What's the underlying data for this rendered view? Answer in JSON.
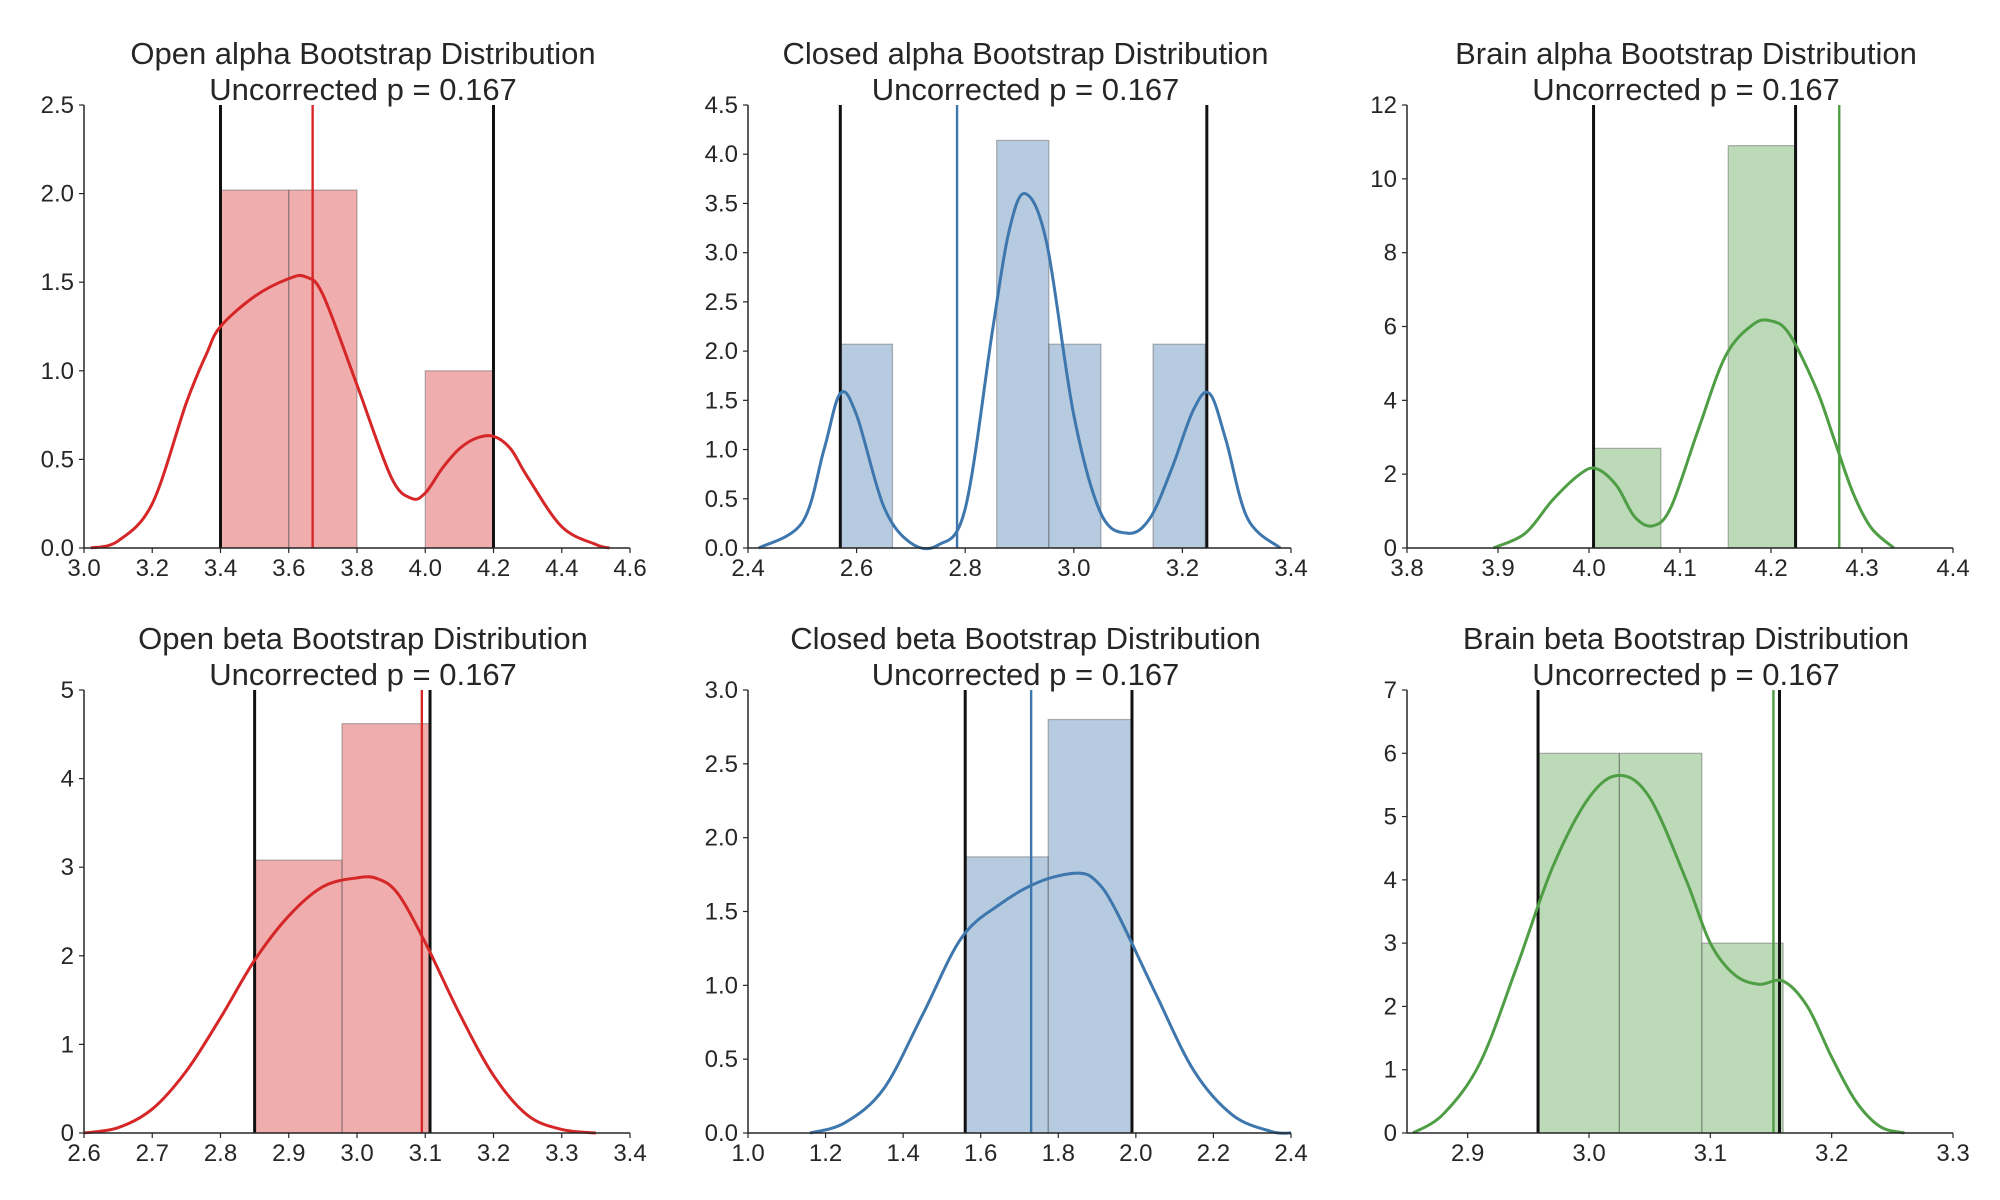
{
  "chart_data": [
    {
      "type": "histogram",
      "title_line1": "Open alpha Bootstrap Distribution",
      "title_line2": "Uncorrected p = 0.167",
      "color": "#d62728",
      "xlim": [
        3.0,
        4.6
      ],
      "ylim": [
        0,
        2.5
      ],
      "xticks": [
        "3.0",
        "3.2",
        "3.4",
        "3.6",
        "3.8",
        "4.0",
        "4.2",
        "4.4",
        "4.6"
      ],
      "yticks": [
        "0.0",
        "0.5",
        "1.0",
        "1.5",
        "2.0",
        "2.5"
      ],
      "bins": [
        {
          "x0": 3.4,
          "x1": 3.6,
          "height": 2.02
        },
        {
          "x0": 3.6,
          "x1": 3.8,
          "height": 2.02
        },
        {
          "x0": 3.8,
          "x1": 4.0,
          "height": 0
        },
        {
          "x0": 4.0,
          "x1": 4.2,
          "height": 1.0
        }
      ],
      "kde": {
        "x": [
          3.02,
          3.1,
          3.2,
          3.3,
          3.36,
          3.4,
          3.5,
          3.6,
          3.65,
          3.7,
          3.8,
          3.9,
          3.96,
          4.0,
          4.05,
          4.1,
          4.15,
          4.2,
          4.25,
          4.3,
          4.4,
          4.5,
          4.54
        ],
        "y": [
          0.0,
          0.04,
          0.25,
          0.82,
          1.1,
          1.25,
          1.42,
          1.52,
          1.53,
          1.43,
          0.92,
          0.4,
          0.28,
          0.31,
          0.45,
          0.56,
          0.62,
          0.63,
          0.56,
          0.4,
          0.12,
          0.02,
          0.0
        ]
      },
      "ci_lines": [
        3.4,
        4.2
      ],
      "observed_line": 3.67
    },
    {
      "type": "histogram",
      "title_line1": "Closed alpha Bootstrap Distribution",
      "title_line2": "Uncorrected p = 0.167",
      "color": "#3e77ad",
      "xlim": [
        2.4,
        3.4
      ],
      "ylim": [
        0,
        4.5
      ],
      "xticks": [
        "2.4",
        "2.6",
        "2.8",
        "3.0",
        "3.2",
        "3.4"
      ],
      "yticks": [
        "0.0",
        "0.5",
        "1.0",
        "1.5",
        "2.0",
        "2.5",
        "3.0",
        "3.5",
        "4.0",
        "4.5"
      ],
      "bins": [
        {
          "x0": 2.57,
          "x1": 2.666,
          "height": 2.07
        },
        {
          "x0": 2.666,
          "x1": 2.762,
          "height": 0
        },
        {
          "x0": 2.762,
          "x1": 2.858,
          "height": 0
        },
        {
          "x0": 2.858,
          "x1": 2.954,
          "height": 4.14
        },
        {
          "x0": 2.954,
          "x1": 3.05,
          "height": 2.07
        },
        {
          "x0": 3.05,
          "x1": 3.146,
          "height": 0
        },
        {
          "x0": 3.146,
          "x1": 3.242,
          "height": 2.07
        }
      ],
      "kde": {
        "x": [
          2.42,
          2.5,
          2.54,
          2.57,
          2.6,
          2.65,
          2.7,
          2.75,
          2.8,
          2.85,
          2.88,
          2.91,
          2.95,
          3.0,
          3.05,
          3.1,
          3.14,
          3.18,
          3.22,
          3.25,
          3.28,
          3.32,
          3.38
        ],
        "y": [
          0.0,
          0.26,
          1.0,
          1.57,
          1.35,
          0.42,
          0.05,
          0.03,
          0.4,
          2.2,
          3.2,
          3.6,
          3.1,
          1.35,
          0.35,
          0.15,
          0.3,
          0.8,
          1.4,
          1.57,
          1.1,
          0.3,
          0.0
        ]
      },
      "ci_lines": [
        2.57,
        3.245
      ],
      "observed_line": 2.785
    },
    {
      "type": "histogram",
      "title_line1": "Brain alpha Bootstrap Distribution",
      "title_line2": "Uncorrected p = 0.167",
      "color": "#4f9e45",
      "xlim": [
        3.8,
        4.4
      ],
      "ylim": [
        0,
        12
      ],
      "xticks": [
        "3.8",
        "3.9",
        "4.0",
        "4.1",
        "4.2",
        "4.3",
        "4.4"
      ],
      "yticks": [
        "0",
        "2",
        "4",
        "6",
        "8",
        "10",
        "12"
      ],
      "bins": [
        {
          "x0": 4.005,
          "x1": 4.079,
          "height": 2.7
        },
        {
          "x0": 4.079,
          "x1": 4.153,
          "height": 0
        },
        {
          "x0": 4.153,
          "x1": 4.227,
          "height": 10.9
        }
      ],
      "kde": {
        "x": [
          3.895,
          3.93,
          3.96,
          3.99,
          4.008,
          4.03,
          4.05,
          4.07,
          4.09,
          4.12,
          4.15,
          4.18,
          4.2,
          4.22,
          4.25,
          4.27,
          4.29,
          4.31,
          4.335
        ],
        "y": [
          0.0,
          0.4,
          1.3,
          2.0,
          2.15,
          1.7,
          0.85,
          0.6,
          1.1,
          3.2,
          5.2,
          6.05,
          6.15,
          5.8,
          4.3,
          2.9,
          1.5,
          0.55,
          0.0
        ]
      },
      "ci_lines": [
        4.005,
        4.227
      ],
      "observed_line": 4.275
    },
    {
      "type": "histogram",
      "title_line1": "Open beta Bootstrap Distribution",
      "title_line2": "Uncorrected p = 0.167",
      "color": "#d62728",
      "xlim": [
        2.6,
        3.4
      ],
      "ylim": [
        0,
        5
      ],
      "xticks": [
        "2.6",
        "2.7",
        "2.8",
        "2.9",
        "3.0",
        "3.1",
        "3.2",
        "3.3",
        "3.4"
      ],
      "yticks": [
        "0",
        "1",
        "2",
        "3",
        "4",
        "5"
      ],
      "bins": [
        {
          "x0": 2.85,
          "x1": 2.978,
          "height": 3.08
        },
        {
          "x0": 2.978,
          "x1": 3.106,
          "height": 4.62
        }
      ],
      "kde": {
        "x": [
          2.6,
          2.65,
          2.7,
          2.75,
          2.8,
          2.85,
          2.9,
          2.95,
          3.0,
          3.03,
          3.06,
          3.1,
          3.15,
          3.2,
          3.25,
          3.3,
          3.35
        ],
        "y": [
          0.0,
          0.06,
          0.27,
          0.7,
          1.3,
          1.95,
          2.45,
          2.78,
          2.88,
          2.87,
          2.7,
          2.15,
          1.35,
          0.65,
          0.2,
          0.04,
          0.0
        ]
      },
      "ci_lines": [
        2.85,
        3.107
      ],
      "observed_line": 3.095
    },
    {
      "type": "histogram",
      "title_line1": "Closed beta Bootstrap Distribution",
      "title_line2": "Uncorrected p = 0.167",
      "color": "#3e77ad",
      "xlim": [
        1.0,
        2.4
      ],
      "ylim": [
        0,
        3.0
      ],
      "xticks": [
        "1.0",
        "1.2",
        "1.4",
        "1.6",
        "1.8",
        "2.0",
        "2.2",
        "2.4"
      ],
      "yticks": [
        "0.0",
        "0.5",
        "1.0",
        "1.5",
        "2.0",
        "2.5",
        "3.0"
      ],
      "bins": [
        {
          "x0": 1.56,
          "x1": 1.774,
          "height": 1.87
        },
        {
          "x0": 1.774,
          "x1": 1.988,
          "height": 2.8
        }
      ],
      "kde": {
        "x": [
          1.16,
          1.25,
          1.35,
          1.45,
          1.55,
          1.65,
          1.75,
          1.85,
          1.9,
          1.95,
          2.05,
          2.15,
          2.25,
          2.35,
          2.4
        ],
        "y": [
          0.0,
          0.07,
          0.3,
          0.8,
          1.32,
          1.55,
          1.7,
          1.76,
          1.7,
          1.5,
          0.95,
          0.42,
          0.12,
          0.01,
          0.0
        ]
      },
      "ci_lines": [
        1.56,
        1.99
      ],
      "observed_line": 1.73
    },
    {
      "type": "histogram",
      "title_line1": "Brain beta Bootstrap Distribution",
      "title_line2": "Uncorrected p = 0.167",
      "color": "#4f9e45",
      "xlim": [
        2.85,
        3.3
      ],
      "ylim": [
        0,
        7
      ],
      "xticks": [
        "2.9",
        "3.0",
        "3.1",
        "3.2",
        "3.3"
      ],
      "yticks": [
        "0",
        "1",
        "2",
        "3",
        "4",
        "5",
        "6",
        "7"
      ],
      "bins": [
        {
          "x0": 2.958,
          "x1": 3.025,
          "height": 6.0
        },
        {
          "x0": 3.025,
          "x1": 3.093,
          "height": 6.0
        },
        {
          "x0": 3.093,
          "x1": 3.16,
          "height": 3.0
        }
      ],
      "kde": {
        "x": [
          2.855,
          2.88,
          2.91,
          2.94,
          2.97,
          3.0,
          3.025,
          3.05,
          3.08,
          3.1,
          3.12,
          3.14,
          3.16,
          3.18,
          3.2,
          3.22,
          3.24,
          3.26
        ],
        "y": [
          0.0,
          0.3,
          1.1,
          2.6,
          4.2,
          5.3,
          5.65,
          5.3,
          4.0,
          3.0,
          2.5,
          2.35,
          2.4,
          2.0,
          1.2,
          0.5,
          0.1,
          0.0
        ]
      },
      "ci_lines": [
        2.958,
        3.157
      ],
      "observed_line": 3.152
    }
  ]
}
